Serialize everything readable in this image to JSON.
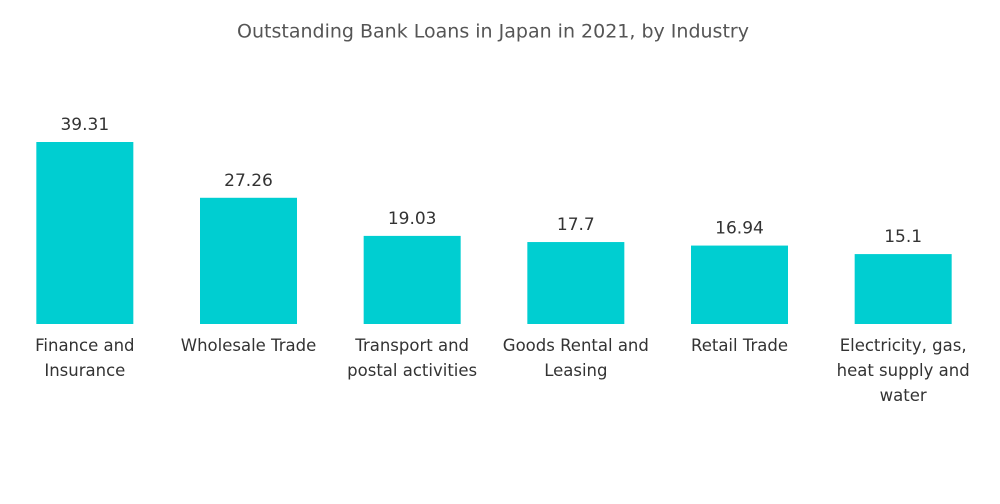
{
  "chart_data": {
    "type": "bar",
    "title": "Outstanding Bank Loans in Japan in 2021, by Industry",
    "categories": [
      "Finance and Insurance",
      "Wholesale Trade",
      "Transport and postal activities",
      "Goods Rental and Leasing",
      "Retail Trade",
      "Electricity, gas, heat supply and water"
    ],
    "values": [
      39.31,
      27.26,
      19.03,
      17.7,
      16.94,
      15.1
    ],
    "color": "#00ced1"
  }
}
